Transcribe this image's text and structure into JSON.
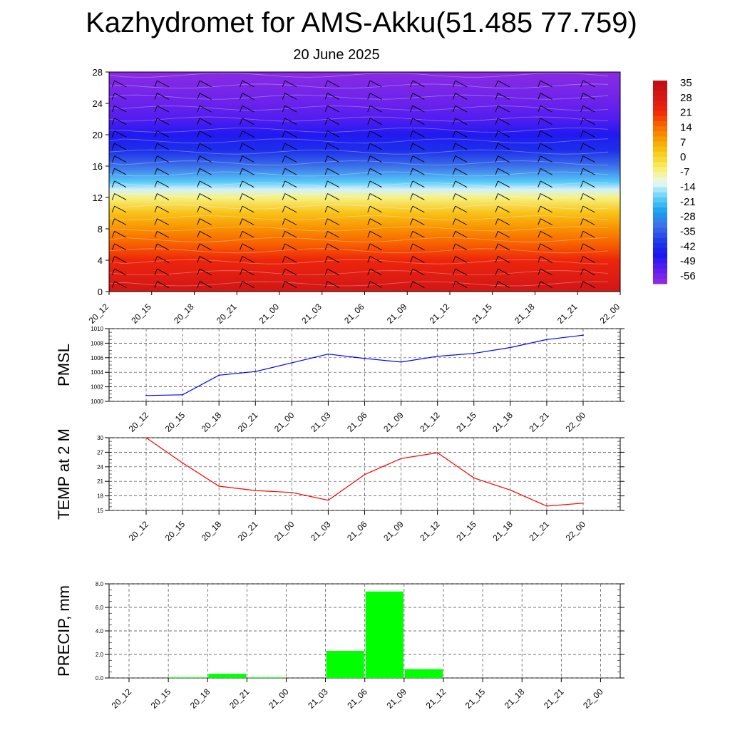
{
  "title": "Kazhydromet for AMS-Akku(51.485 77.759)",
  "subtitle": "20 June 2025",
  "colorbar": {
    "labels": [
      "35",
      "28",
      "21",
      "14",
      "7",
      "0",
      "-7",
      "-14",
      "-21",
      "-28",
      "-35",
      "-42",
      "-49",
      "-56"
    ],
    "colors": [
      "#f0b0b0",
      "#d81818",
      "#f02808",
      "#f86800",
      "#f8a000",
      "#f8d020",
      "#f8f060",
      "#f0f8f8",
      "#60d0f8",
      "#18a0f0",
      "#3c78e8",
      "#3850e0",
      "#1818f0",
      "#8030e8"
    ]
  },
  "chart_data": [
    {
      "type": "heatmap",
      "name_in_image": "vertical cross-section (filled contours with wind barbs)",
      "x": [
        "20_12",
        "20_15",
        "20_18",
        "20_21",
        "21_00",
        "21_03",
        "21_06",
        "21_09",
        "21_12",
        "21_15",
        "21_18",
        "21_21",
        "22_00"
      ],
      "ylim": [
        0,
        28
      ],
      "yticks": [
        "0",
        "4",
        "8",
        "12",
        "16",
        "20",
        "24",
        "28"
      ],
      "value_range": [
        -56,
        35
      ],
      "profile_height": [
        0,
        2,
        4,
        6,
        8,
        10,
        12,
        13,
        14,
        16,
        18,
        20,
        22,
        24,
        26,
        28
      ],
      "profile_value": [
        30,
        26,
        22,
        15,
        9,
        2,
        -8,
        -15,
        -22,
        -35,
        -45,
        -50,
        -55,
        -58,
        -60,
        -62
      ]
    },
    {
      "type": "line",
      "ylabel": "PMSL",
      "x": [
        "20_12",
        "20_15",
        "20_18",
        "20_21",
        "21_00",
        "21_03",
        "21_06",
        "21_09",
        "21_12",
        "21_15",
        "21_18",
        "21_21",
        "22_00"
      ],
      "yticks": [
        "1000",
        "1002",
        "1004",
        "1006",
        "1008",
        "1010"
      ],
      "ylim": [
        1000,
        1010
      ],
      "color": "#0000ff",
      "values": [
        1000.8,
        1000.9,
        1003.6,
        1004.1,
        1005.3,
        1006.5,
        1005.9,
        1005.4,
        1006.2,
        1006.6,
        1007.4,
        1008.5,
        1009.1
      ]
    },
    {
      "type": "line",
      "ylabel": "TEMP at 2 M",
      "x": [
        "20_12",
        "20_15",
        "20_18",
        "20_21",
        "21_00",
        "21_03",
        "21_06",
        "21_09",
        "21_12",
        "21_15",
        "21_18",
        "21_21",
        "22_00"
      ],
      "yticks": [
        "15",
        "18",
        "21",
        "24",
        "27",
        "30"
      ],
      "ylim": [
        15,
        30
      ],
      "color": "#ff0000",
      "values": [
        30.0,
        24.8,
        20.0,
        19.1,
        18.7,
        17.1,
        22.4,
        25.7,
        26.9,
        21.7,
        19.2,
        15.9,
        16.5
      ]
    },
    {
      "type": "bar",
      "ylabel": "PRECIP, mm",
      "x": [
        "20_12",
        "20_15",
        "20_18",
        "20_21",
        "21_00",
        "21_03",
        "21_06",
        "21_09",
        "21_12",
        "21_15",
        "21_18",
        "21_21",
        "22_00"
      ],
      "yticks": [
        "0.0",
        "2.0",
        "4.0",
        "6.0",
        "8.0"
      ],
      "ylim": [
        0,
        8
      ],
      "color": "#00ff00",
      "values": [
        0,
        0.05,
        0.35,
        0.05,
        0,
        2.3,
        7.35,
        0.75,
        0,
        0,
        0,
        0,
        0
      ]
    }
  ]
}
